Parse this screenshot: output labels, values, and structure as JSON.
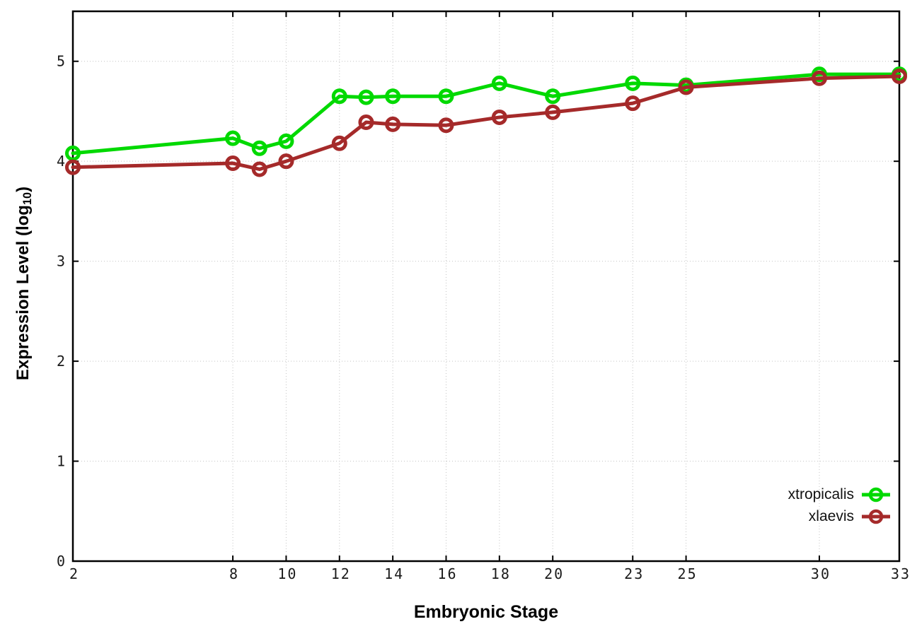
{
  "chart_data": {
    "type": "line",
    "title": "",
    "xlabel": "Embryonic Stage",
    "ylabel": "Expression Level (log10)",
    "ylabel_parts": {
      "main": "Expression Level (log",
      "sub": "10",
      "end": ")"
    },
    "x": [
      2,
      8,
      9,
      10,
      12,
      13,
      14,
      16,
      18,
      20,
      23,
      25,
      30,
      33
    ],
    "series": [
      {
        "name": "xtropicalis",
        "color": "#00d900",
        "values": [
          4.08,
          4.23,
          4.13,
          4.2,
          4.65,
          4.64,
          4.65,
          4.65,
          4.78,
          4.65,
          4.78,
          4.76,
          4.87,
          4.87
        ]
      },
      {
        "name": "xlaevis",
        "color": "#a52a2a",
        "values": [
          3.94,
          3.98,
          3.92,
          4.0,
          4.18,
          4.39,
          4.37,
          4.36,
          4.44,
          4.49,
          4.58,
          4.74,
          4.83,
          4.85
        ]
      }
    ],
    "xticks": [
      2,
      8,
      10,
      12,
      14,
      16,
      18,
      20,
      23,
      25,
      30,
      33
    ],
    "yticks": [
      0,
      1,
      2,
      3,
      4,
      5
    ],
    "xlim": [
      2,
      33
    ],
    "ylim": [
      0,
      5.5
    ],
    "grid": true,
    "legend_position": "inside-bottom-right",
    "marker": "open-circle",
    "background_color": "#ffffff",
    "axis_color": "#000000",
    "grid_color": "#c4c4c4",
    "tick_label_color": "#1a1a1a"
  }
}
